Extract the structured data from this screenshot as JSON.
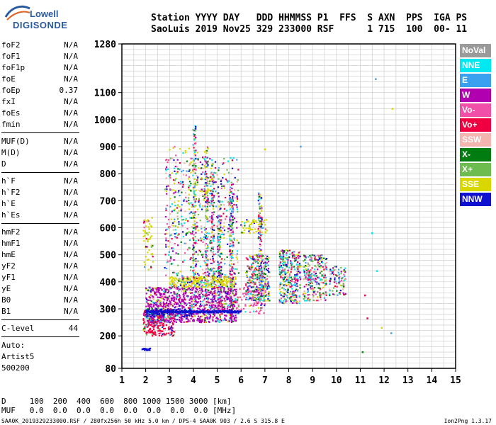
{
  "logo": {
    "line1": "Lowell",
    "line2": "DIGISONDE"
  },
  "header": {
    "line1": "Station YYYY DAY   DDD HHMMSS P1  FFS  S AXN  PPS  IGA PS",
    "line2": "SaoLuis 2019 Nov25 329 233000 RSF      1 715  100  00- 11"
  },
  "params": {
    "group1": [
      {
        "name": "foF2",
        "value": "N/A"
      },
      {
        "name": "foF1",
        "value": "N/A"
      },
      {
        "name": "foF1p",
        "value": "N/A"
      },
      {
        "name": "foE",
        "value": "N/A"
      },
      {
        "name": "foEp",
        "value": "0.37"
      },
      {
        "name": "fxI",
        "value": "N/A"
      },
      {
        "name": "foEs",
        "value": "N/A"
      },
      {
        "name": "fmin",
        "value": "N/A"
      }
    ],
    "group2": [
      {
        "name": "MUF(D)",
        "value": "N/A"
      },
      {
        "name": "M(D)",
        "value": "N/A"
      },
      {
        "name": "D",
        "value": "N/A"
      }
    ],
    "group3": [
      {
        "name": "h`F",
        "value": "N/A"
      },
      {
        "name": "h`F2",
        "value": "N/A"
      },
      {
        "name": "h`E",
        "value": "N/A"
      },
      {
        "name": "h`Es",
        "value": "N/A"
      }
    ],
    "group4": [
      {
        "name": "hmF2",
        "value": "N/A"
      },
      {
        "name": "hmF1",
        "value": "N/A"
      },
      {
        "name": "hmE",
        "value": "N/A"
      },
      {
        "name": "yF2",
        "value": "N/A"
      },
      {
        "name": "yF1",
        "value": "N/A"
      },
      {
        "name": "yE",
        "value": "N/A"
      },
      {
        "name": "B0",
        "value": "N/A"
      },
      {
        "name": "B1",
        "value": "N/A"
      }
    ],
    "clevel": {
      "name": "C-level",
      "value": "44"
    }
  },
  "auto": {
    "label": "Auto:",
    "system": "Artist5",
    "version": "500200"
  },
  "legend": [
    {
      "label": "NoVal",
      "color": "#9a9a9a"
    },
    {
      "label": "NNE",
      "color": "#00e8f0"
    },
    {
      "label": "E",
      "color": "#3aa0f0"
    },
    {
      "label": "W",
      "color": "#b000b0"
    },
    {
      "label": "Vo-",
      "color": "#f050a8"
    },
    {
      "label": "Vo+",
      "color": "#f00040"
    },
    {
      "label": "SSW",
      "color": "#f4b4b0"
    },
    {
      "label": "X-",
      "color": "#007c10"
    },
    {
      "label": "X+",
      "color": "#6cbc50"
    },
    {
      "label": "SSE",
      "color": "#d8d800"
    },
    {
      "label": "NNW",
      "color": "#1010d0"
    }
  ],
  "chart_data": {
    "type": "scatter",
    "xlim": [
      1,
      15
    ],
    "ylim": [
      80,
      1280
    ],
    "xticks": [
      "1",
      "2",
      "3",
      "4",
      "5",
      "6",
      "7",
      "8",
      "9",
      "10",
      "11",
      "12",
      "13",
      "14",
      "15"
    ],
    "yticks": [
      {
        "v": 80,
        "t": "80"
      },
      {
        "v": 200,
        "t": "200"
      },
      {
        "v": 300,
        "t": "300"
      },
      {
        "v": 400,
        "t": "400"
      },
      {
        "v": 500,
        "t": "500"
      },
      {
        "v": 600,
        "t": "600"
      },
      {
        "v": 700,
        "t": "700"
      },
      {
        "v": 800,
        "t": "800"
      },
      {
        "v": 900,
        "t": "900"
      },
      {
        "v": 1000,
        "t": "1000"
      },
      {
        "v": 1100,
        "t": "1100"
      },
      {
        "v": 1280,
        "t": "1280"
      }
    ],
    "grid": true,
    "clusters": [
      {
        "x": [
          1.9,
          3.2
        ],
        "y": [
          200,
          300
        ],
        "n": 260,
        "dominant": "Vo+"
      },
      {
        "x": [
          2.0,
          5.8
        ],
        "y": [
          250,
          380
        ],
        "n": 900,
        "dominant": "W"
      },
      {
        "x": [
          2.0,
          4.0
        ],
        "y": [
          270,
          300
        ],
        "n": 160,
        "dominant": "NNW"
      },
      {
        "x": [
          3.0,
          5.8
        ],
        "y": [
          380,
          420
        ],
        "n": 280,
        "dominant": "SSE"
      },
      {
        "x": [
          2.8,
          5.9
        ],
        "y": [
          420,
          860
        ],
        "n": 520,
        "dominant": "mixed"
      },
      {
        "x": [
          3.0,
          4.8
        ],
        "y": [
          600,
          900
        ],
        "n": 110,
        "dominant": "SSE"
      },
      {
        "x": [
          6.2,
          7.2
        ],
        "y": [
          330,
          500
        ],
        "n": 320,
        "dominant": "mixed"
      },
      {
        "x": [
          7.6,
          8.5
        ],
        "y": [
          320,
          520
        ],
        "n": 320,
        "dominant": "mixed"
      },
      {
        "x": [
          8.6,
          9.6
        ],
        "y": [
          330,
          500
        ],
        "n": 280,
        "dominant": "mixed"
      },
      {
        "x": [
          9.7,
          10.4
        ],
        "y": [
          350,
          460
        ],
        "n": 90,
        "dominant": "mixed"
      },
      {
        "x": [
          6.0,
          7.1
        ],
        "y": [
          580,
          630
        ],
        "n": 60,
        "dominant": "SSE"
      },
      {
        "x": [
          1.9,
          2.3
        ],
        "y": [
          440,
          640
        ],
        "n": 60,
        "dominant": "SSE"
      },
      {
        "x": [
          5.8,
          7.0
        ],
        "y": [
          280,
          380
        ],
        "n": 80,
        "dominant": "Vo-"
      }
    ],
    "bars": [
      {
        "x": 4.05,
        "y": [
          250,
          980
        ]
      },
      {
        "x": 4.55,
        "y": [
          260,
          900
        ]
      },
      {
        "x": 4.8,
        "y": [
          260,
          820
        ]
      },
      {
        "x": 5.1,
        "y": [
          260,
          700
        ]
      },
      {
        "x": 5.6,
        "y": [
          260,
          760
        ]
      },
      {
        "x": 6.8,
        "y": [
          300,
          730
        ]
      }
    ],
    "lines": [
      {
        "x": [
          1.85,
          2.2
        ],
        "y": 150,
        "label": "NNW"
      },
      {
        "x": [
          2.0,
          6.0
        ],
        "y": 290,
        "label": "NNW"
      }
    ],
    "outliers": [
      {
        "x": 11.65,
        "y": 1150,
        "c": "E"
      },
      {
        "x": 12.35,
        "y": 1040,
        "c": "SSE"
      },
      {
        "x": 11.9,
        "y": 230,
        "c": "SSE"
      },
      {
        "x": 11.1,
        "y": 140,
        "c": "X-"
      },
      {
        "x": 11.2,
        "y": 350,
        "c": "Vo+"
      },
      {
        "x": 11.3,
        "y": 265,
        "c": "Vo+"
      },
      {
        "x": 11.5,
        "y": 580,
        "c": "NNE"
      },
      {
        "x": 12.3,
        "y": 210,
        "c": "E"
      },
      {
        "x": 7.0,
        "y": 890,
        "c": "SSE"
      },
      {
        "x": 8.5,
        "y": 900,
        "c": "E"
      },
      {
        "x": 11.7,
        "y": 440,
        "c": "NNE"
      }
    ]
  },
  "distances": {
    "row1": "D     100  200  400  600  800 1000 1500 3000 [km]",
    "row2": "MUF   0.0  0.0  0.0  0.0  0.0  0.0  0.0  0.0 [MHz]"
  },
  "footer": {
    "left": "SAA0K_2019329233000.RSF / 280fx256h 50 kHz 5.0 km / DPS-4 SAA0K 903 / 2.6 S 315.8 E",
    "right": "Ion2Png 1.3.17"
  }
}
